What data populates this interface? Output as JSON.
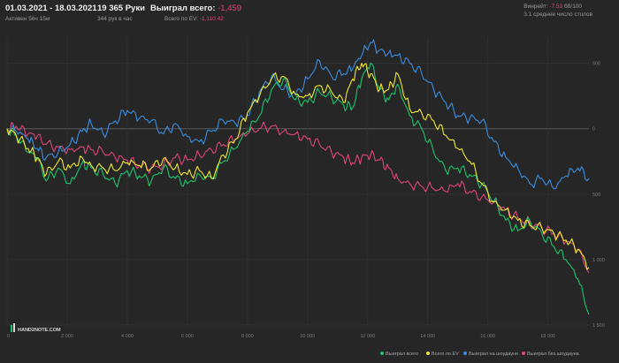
{
  "header": {
    "date_range": "01.03.2021 - 18.03.2021",
    "active": "Активен 56ч 15м",
    "hands_count": "19 365 Руки",
    "hands_rate": "344 рук в час",
    "won_total_label": "Выиграл всего:",
    "won_total_value": "-1,459",
    "ev_total_label": "Всего по EV:",
    "ev_total_value": "-1,110.42",
    "winrate_label": "Винрейт:",
    "winrate_value": "-7.53",
    "winrate_unit": "бб/100",
    "tables_avg": "3.1 среднее число столов"
  },
  "logo_text": "HAND2NOTE.COM",
  "colors": {
    "background": "#262626",
    "won_total": "#1ec46c",
    "ev_total": "#f0e830",
    "won_showdown": "#3a8ee0",
    "won_no_showdown": "#e0447a"
  },
  "chart_data": {
    "type": "line",
    "title": "",
    "xlabel": "",
    "ylabel": "",
    "xlim": [
      0,
      19365
    ],
    "ylim": [
      -1500,
      700
    ],
    "x_ticks": [
      0,
      2000,
      4000,
      6000,
      8000,
      10000,
      12000,
      14000,
      16000,
      18000
    ],
    "x_tick_labels": [
      "0",
      "2 000",
      "4 000",
      "6 000",
      "8 000",
      "10 000",
      "12 000",
      "14 000",
      "16 000",
      "18 000"
    ],
    "y_ticks": [
      500,
      0,
      -500,
      -1000,
      -1500
    ],
    "y_tick_labels": [
      "500",
      "0",
      "500",
      "1 000",
      "1 500"
    ],
    "grid": true,
    "legend_position": "bottom-right",
    "series": [
      {
        "name": "Выиграл всего",
        "color_key": "won_total",
        "x": [
          0,
          300,
          700,
          1000,
          1300,
          1700,
          2100,
          2500,
          2800,
          3200,
          3600,
          4000,
          4400,
          4800,
          5200,
          5600,
          6000,
          6400,
          6800,
          7200,
          7600,
          8000,
          8400,
          8800,
          9200,
          9600,
          10000,
          10400,
          10800,
          11200,
          11500,
          11800,
          12100,
          12400,
          12700,
          13000,
          13400,
          13800,
          14200,
          14600,
          15000,
          15400,
          15800,
          16200,
          16600,
          17000,
          17400,
          17800,
          18200,
          18600,
          19000,
          19365
        ],
        "values": [
          0,
          -50,
          -180,
          -220,
          -400,
          -300,
          -420,
          -260,
          -300,
          -350,
          -420,
          -320,
          -360,
          -400,
          -300,
          -380,
          -420,
          -350,
          -380,
          -250,
          -150,
          -20,
          100,
          300,
          380,
          220,
          200,
          280,
          240,
          180,
          160,
          380,
          500,
          300,
          220,
          340,
          100,
          0,
          -180,
          -320,
          -300,
          -350,
          -420,
          -550,
          -700,
          -780,
          -700,
          -800,
          -900,
          -1000,
          -1150,
          -1420
        ]
      },
      {
        "name": "Всего по EV",
        "color_key": "ev_total",
        "x": [
          0,
          300,
          700,
          1000,
          1300,
          1700,
          2100,
          2500,
          2800,
          3200,
          3600,
          4000,
          4400,
          4800,
          5200,
          5600,
          6000,
          6400,
          6800,
          7200,
          7600,
          8000,
          8400,
          8800,
          9200,
          9600,
          10000,
          10400,
          10800,
          11200,
          11500,
          11800,
          12100,
          12400,
          12700,
          13000,
          13400,
          13800,
          14200,
          14600,
          15000,
          15400,
          15800,
          16200,
          16600,
          17000,
          17400,
          17800,
          18200,
          18600,
          19000,
          19365
        ],
        "values": [
          0,
          -50,
          -150,
          -220,
          -350,
          -250,
          -300,
          -220,
          -280,
          -300,
          -320,
          -260,
          -280,
          -300,
          -230,
          -300,
          -350,
          -320,
          -380,
          -200,
          -80,
          120,
          250,
          380,
          400,
          260,
          250,
          330,
          280,
          200,
          380,
          500,
          420,
          300,
          300,
          420,
          150,
          120,
          60,
          -50,
          -150,
          -250,
          -420,
          -560,
          -620,
          -700,
          -740,
          -760,
          -800,
          -850,
          -920,
          -1060
        ]
      },
      {
        "name": "Выиграл на шоудауне",
        "color_key": "won_showdown",
        "x": [
          0,
          300,
          700,
          1000,
          1300,
          1700,
          2100,
          2500,
          2800,
          3200,
          3600,
          4000,
          4400,
          4800,
          5200,
          5600,
          6000,
          6400,
          6800,
          7200,
          7600,
          8000,
          8400,
          8800,
          9200,
          9600,
          10000,
          10400,
          10800,
          11200,
          11500,
          11800,
          12100,
          12400,
          12700,
          13000,
          13400,
          13800,
          14200,
          14600,
          15000,
          15400,
          15800,
          16200,
          16600,
          17000,
          17400,
          17800,
          18200,
          18600,
          19000,
          19365
        ],
        "values": [
          0,
          -20,
          -80,
          -150,
          -220,
          -180,
          -120,
          -20,
          40,
          -40,
          60,
          140,
          80,
          60,
          -40,
          40,
          -60,
          -100,
          -20,
          60,
          40,
          100,
          280,
          400,
          300,
          260,
          380,
          520,
          400,
          420,
          460,
          560,
          660,
          600,
          580,
          560,
          500,
          420,
          300,
          200,
          100,
          80,
          60,
          -100,
          -220,
          -300,
          -420,
          -380,
          -460,
          -360,
          -300,
          -380
        ]
      },
      {
        "name": "Выиграл без шоудауна",
        "color_key": "won_no_showdown",
        "x": [
          0,
          300,
          700,
          1000,
          1300,
          1700,
          2100,
          2500,
          2800,
          3200,
          3600,
          4000,
          4400,
          4800,
          5200,
          5600,
          6000,
          6400,
          6800,
          7200,
          7600,
          8000,
          8400,
          8800,
          9200,
          9600,
          10000,
          10400,
          10800,
          11200,
          11500,
          11800,
          12100,
          12400,
          12700,
          13000,
          13400,
          13800,
          14200,
          14600,
          15000,
          15400,
          15800,
          16200,
          16600,
          17000,
          17400,
          17800,
          18200,
          18600,
          19000,
          19365
        ],
        "values": [
          0,
          20,
          -40,
          -60,
          -120,
          -140,
          -160,
          -140,
          -160,
          -180,
          -220,
          -240,
          -280,
          -300,
          -280,
          -220,
          -240,
          -200,
          -160,
          -120,
          -80,
          -40,
          0,
          20,
          -20,
          -40,
          -80,
          -120,
          -180,
          -220,
          -260,
          -220,
          -200,
          -240,
          -300,
          -380,
          -420,
          -440,
          -460,
          -480,
          -420,
          -480,
          -520,
          -560,
          -620,
          -680,
          -720,
          -760,
          -800,
          -860,
          -920,
          -1100
        ]
      }
    ]
  }
}
